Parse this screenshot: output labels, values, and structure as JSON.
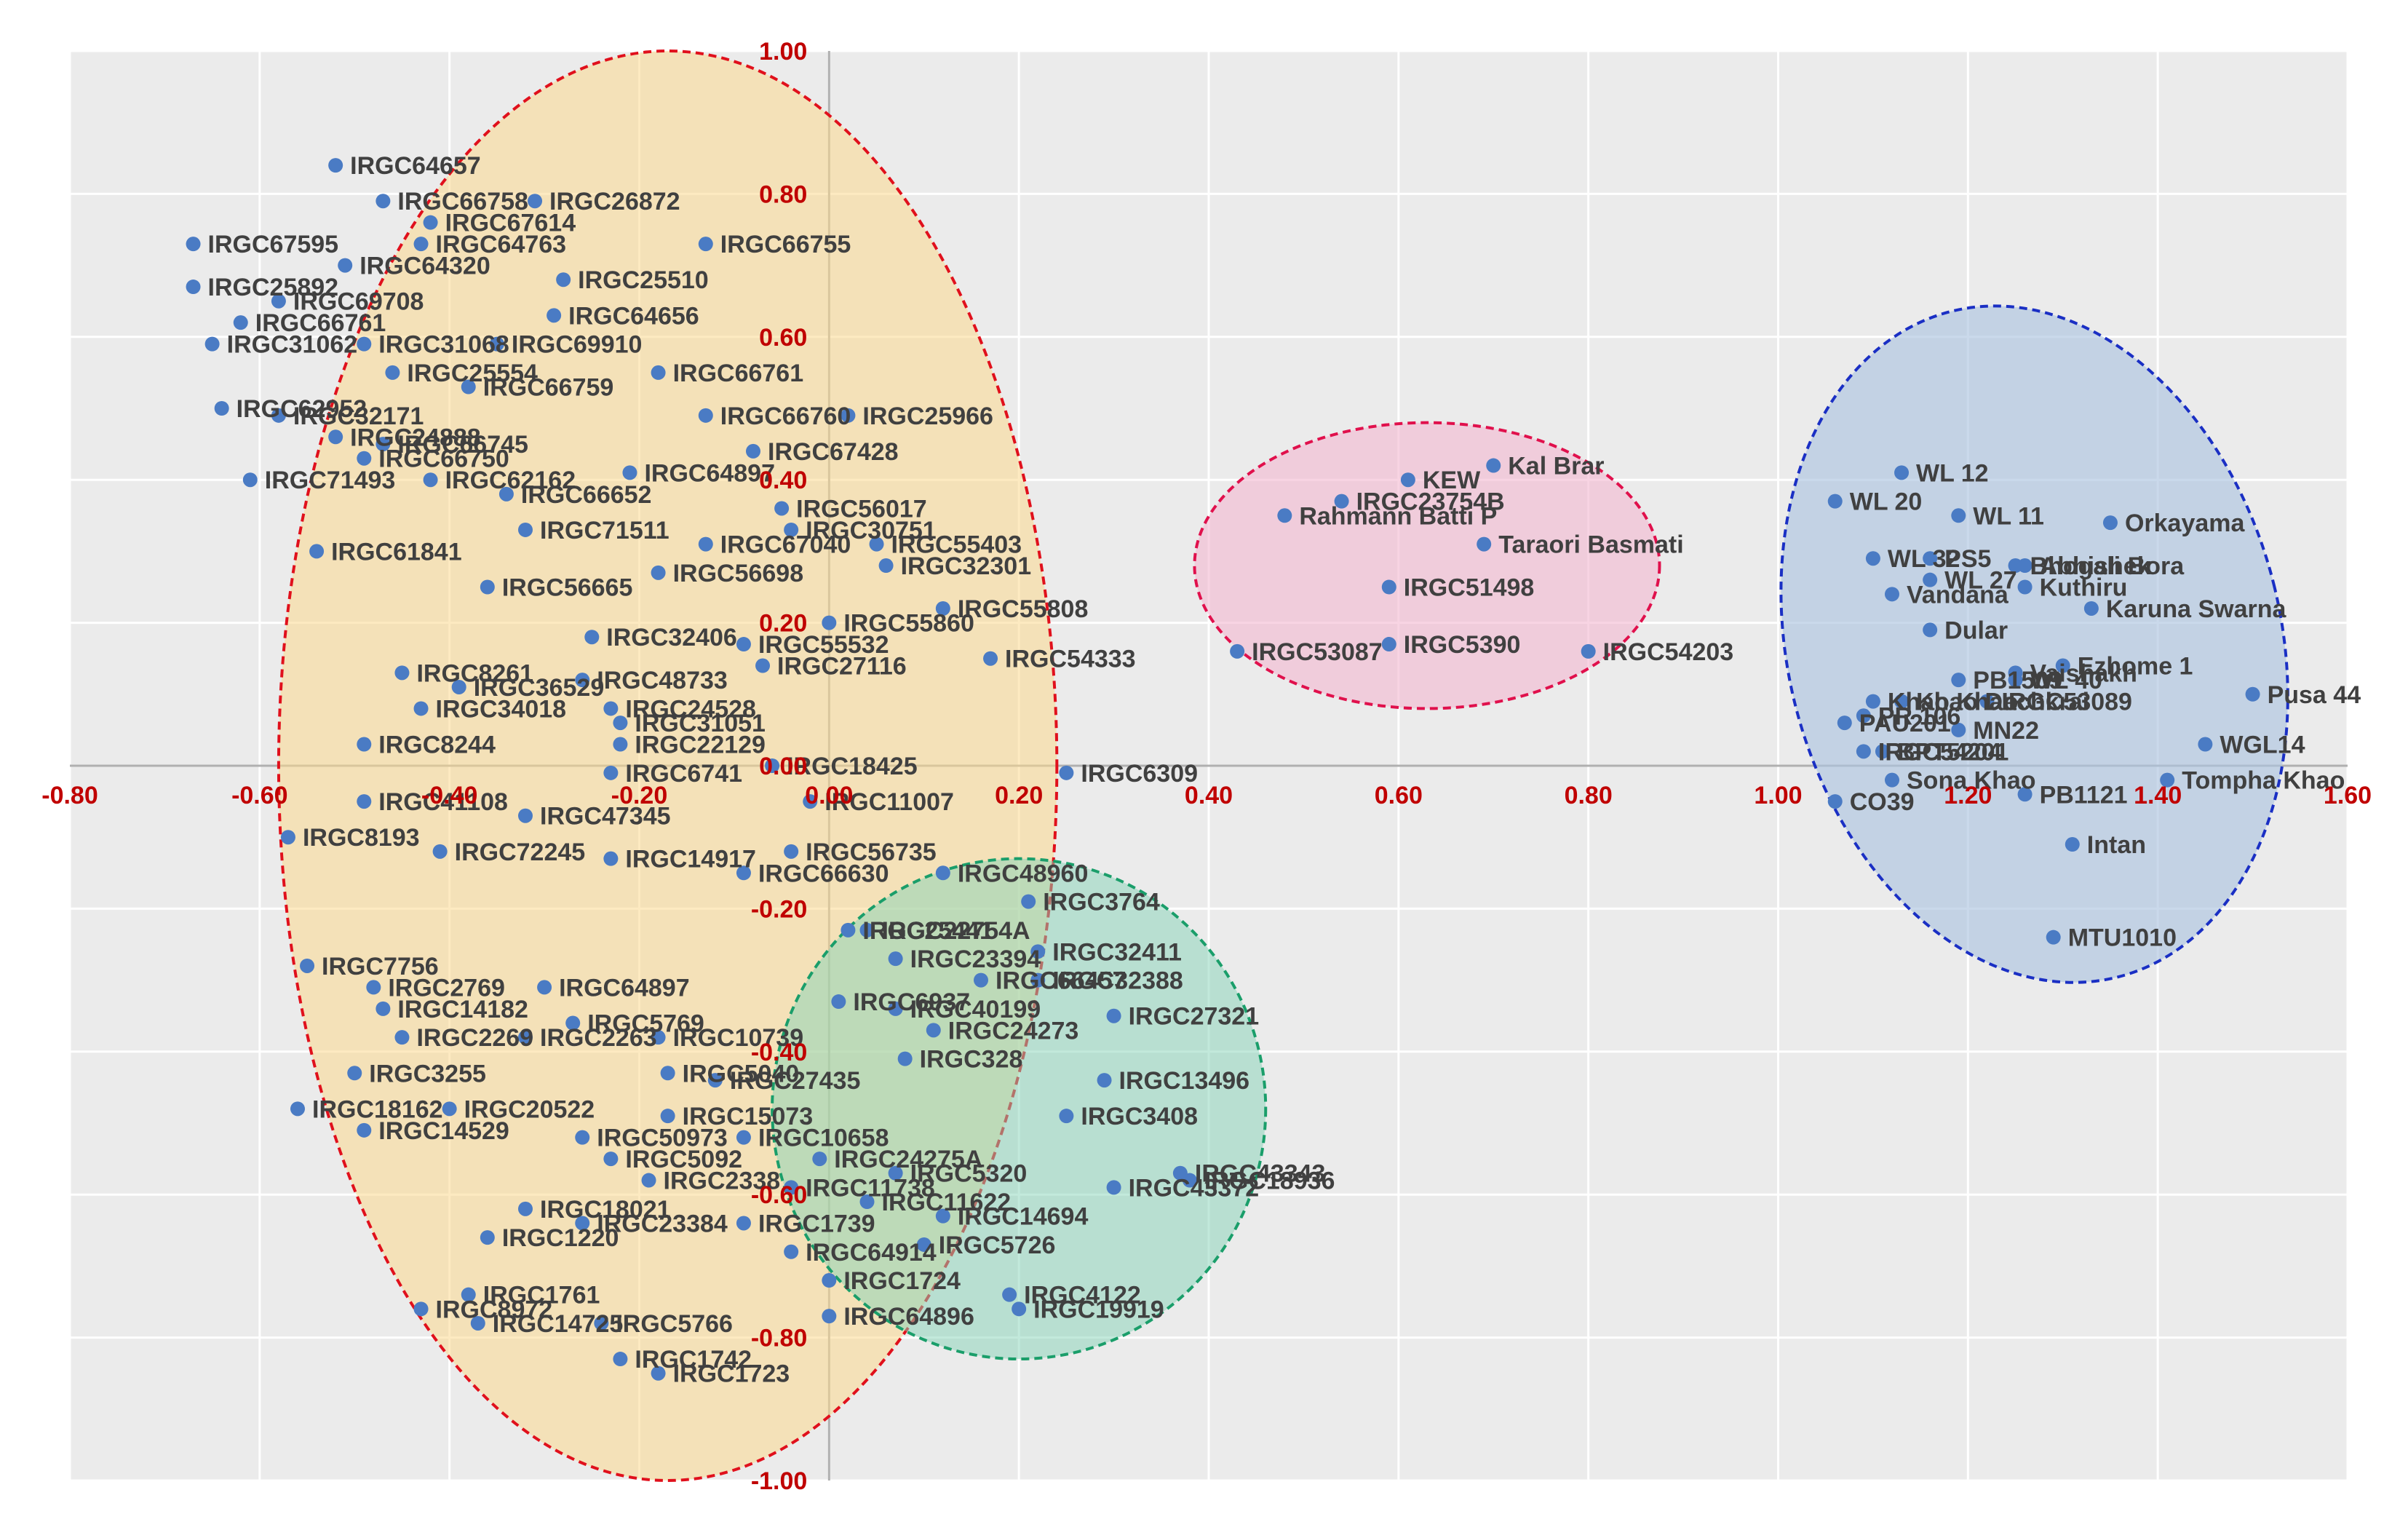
{
  "chart_data": {
    "type": "scatter",
    "title": "",
    "xlabel": "",
    "ylabel": "",
    "xlim": [
      -0.8,
      1.6
    ],
    "ylim": [
      -1.0,
      1.0
    ],
    "grid": true,
    "colors": {
      "background": "#ebebeb",
      "grid": "#ffffff",
      "axis": "#b0b0b0",
      "tick_label": "#c00000",
      "point": "#4a7bc4",
      "point_label": "#404040"
    },
    "x_ticks": [
      {
        "value": -0.8,
        "label": "-0.80"
      },
      {
        "value": -0.6,
        "label": "-0.60"
      },
      {
        "value": -0.4,
        "label": "-0.40"
      },
      {
        "value": -0.2,
        "label": "-0.20"
      },
      {
        "value": 0.0,
        "label": "0.00"
      },
      {
        "value": 0.2,
        "label": "0.20"
      },
      {
        "value": 0.4,
        "label": "0.40"
      },
      {
        "value": 0.6,
        "label": "0.60"
      },
      {
        "value": 0.8,
        "label": "0.80"
      },
      {
        "value": 1.0,
        "label": "1.00"
      },
      {
        "value": 1.2,
        "label": "1.20"
      },
      {
        "value": 1.4,
        "label": "1.40"
      },
      {
        "value": 1.6,
        "label": "1.60"
      }
    ],
    "y_ticks": [
      {
        "value": 1.0,
        "label": "1.00"
      },
      {
        "value": 0.8,
        "label": "0.80"
      },
      {
        "value": 0.6,
        "label": "0.60"
      },
      {
        "value": 0.4,
        "label": "0.40"
      },
      {
        "value": 0.2,
        "label": "0.20"
      },
      {
        "value": 0.0,
        "label": "0.00"
      },
      {
        "value": -0.2,
        "label": "-0.20"
      },
      {
        "value": -0.4,
        "label": "-0.40"
      },
      {
        "value": -0.6,
        "label": "-0.60"
      },
      {
        "value": -0.8,
        "label": "-0.80"
      },
      {
        "value": -1.0,
        "label": "-1.00"
      }
    ],
    "clusters": [
      {
        "name": "cluster-1",
        "color": "#e0101c",
        "fill": "#fbd98e",
        "fill_opacity": 0.55,
        "cx": -0.17,
        "cy": 0.0,
        "rx": 0.41,
        "ry": 1.0,
        "rotation_deg": 0
      },
      {
        "name": "cluster-2",
        "color": "#1a9e6a",
        "fill": "#86d4b8",
        "fill_opacity": 0.5,
        "cx": 0.2,
        "cy": -0.48,
        "rx": 0.26,
        "ry": 0.35,
        "rotation_deg": 0
      },
      {
        "name": "cluster-3",
        "color": "#e0104c",
        "fill": "#f4b8d0",
        "fill_opacity": 0.6,
        "cx": 0.63,
        "cy": 0.28,
        "rx": 0.245,
        "ry": 0.2,
        "rotation_deg": 0
      },
      {
        "name": "cluster-4",
        "color": "#1a2fc4",
        "fill": "#aec4e0",
        "fill_opacity": 0.65,
        "cx": 1.27,
        "cy": 0.17,
        "rx": 0.26,
        "ry": 0.48,
        "rotation_deg": -14
      }
    ],
    "points": [
      {
        "label": "IRGC64657",
        "x": -0.52,
        "y": 0.84
      },
      {
        "label": "IRGC66758",
        "x": -0.47,
        "y": 0.79
      },
      {
        "label": "IRGC26872",
        "x": -0.31,
        "y": 0.79
      },
      {
        "label": "IRGC67614",
        "x": -0.42,
        "y": 0.76
      },
      {
        "label": "IRGC67595",
        "x": -0.67,
        "y": 0.73
      },
      {
        "label": "IRGC64763",
        "x": -0.43,
        "y": 0.73
      },
      {
        "label": "IRGC66755",
        "x": -0.13,
        "y": 0.73
      },
      {
        "label": "IRGC64320",
        "x": -0.51,
        "y": 0.7
      },
      {
        "label": "IRGC25892",
        "x": -0.67,
        "y": 0.67
      },
      {
        "label": "IRGC25510",
        "x": -0.28,
        "y": 0.68
      },
      {
        "label": "IRGC69708",
        "x": -0.58,
        "y": 0.65
      },
      {
        "label": "IRGC64656",
        "x": -0.29,
        "y": 0.63
      },
      {
        "label": "IRGC66761",
        "x": -0.62,
        "y": 0.62
      },
      {
        "label": "IRGC31062",
        "x": -0.65,
        "y": 0.59
      },
      {
        "label": "IRGC31068",
        "x": -0.49,
        "y": 0.59
      },
      {
        "label": "IRGC69910",
        "x": -0.35,
        "y": 0.59
      },
      {
        "label": "IRGC25554",
        "x": -0.46,
        "y": 0.55
      },
      {
        "label": "IRGC66761",
        "x": -0.18,
        "y": 0.55
      },
      {
        "label": "IRGC62952",
        "x": -0.64,
        "y": 0.5
      },
      {
        "label": "IRGC66759",
        "x": -0.38,
        "y": 0.53
      },
      {
        "label": "IRGC32171",
        "x": -0.58,
        "y": 0.49
      },
      {
        "label": "IRGC66760",
        "x": -0.13,
        "y": 0.49
      },
      {
        "label": "IRGC25966",
        "x": 0.02,
        "y": 0.49
      },
      {
        "label": "IRGC24888",
        "x": -0.52,
        "y": 0.46
      },
      {
        "label": "IRGC67428",
        "x": -0.08,
        "y": 0.44
      },
      {
        "label": "IRGC66745",
        "x": -0.47,
        "y": 0.45
      },
      {
        "label": "IRGC66750",
        "x": -0.49,
        "y": 0.43
      },
      {
        "label": "IRGC71493",
        "x": -0.61,
        "y": 0.4
      },
      {
        "label": "IRGC62162",
        "x": -0.42,
        "y": 0.4
      },
      {
        "label": "IRGC64897",
        "x": -0.21,
        "y": 0.41
      },
      {
        "label": "IRGC66652",
        "x": -0.34,
        "y": 0.38
      },
      {
        "label": "IRGC56017",
        "x": -0.05,
        "y": 0.36
      },
      {
        "label": "IRGC71511",
        "x": -0.32,
        "y": 0.33
      },
      {
        "label": "IRGC30751",
        "x": -0.04,
        "y": 0.33
      },
      {
        "label": "IRGC67040",
        "x": -0.13,
        "y": 0.31
      },
      {
        "label": "IRGC55403",
        "x": 0.05,
        "y": 0.31
      },
      {
        "label": "IRGC61841",
        "x": -0.54,
        "y": 0.3
      },
      {
        "label": "IRGC32301",
        "x": 0.06,
        "y": 0.28
      },
      {
        "label": "IRGC56698",
        "x": -0.18,
        "y": 0.27
      },
      {
        "label": "IRGC56665",
        "x": -0.36,
        "y": 0.25
      },
      {
        "label": "IRGC55808",
        "x": 0.12,
        "y": 0.22
      },
      {
        "label": "IRGC55860",
        "x": 0.0,
        "y": 0.2
      },
      {
        "label": "IRGC32406",
        "x": -0.25,
        "y": 0.18
      },
      {
        "label": "IRGC55532",
        "x": -0.09,
        "y": 0.17
      },
      {
        "label": "IRGC54333",
        "x": 0.17,
        "y": 0.15
      },
      {
        "label": "IRGC27116",
        "x": -0.07,
        "y": 0.14
      },
      {
        "label": "IRGC8261",
        "x": -0.45,
        "y": 0.13
      },
      {
        "label": "IRGC48733",
        "x": -0.26,
        "y": 0.12
      },
      {
        "label": "IRGC36529",
        "x": -0.39,
        "y": 0.11
      },
      {
        "label": "IRGC34018",
        "x": -0.43,
        "y": 0.08
      },
      {
        "label": "IRGC24528",
        "x": -0.23,
        "y": 0.08
      },
      {
        "label": "IRGC31051",
        "x": -0.22,
        "y": 0.06
      },
      {
        "label": "IRGC22129",
        "x": -0.22,
        "y": 0.03
      },
      {
        "label": "IRGC8244",
        "x": -0.49,
        "y": 0.03
      },
      {
        "label": "IRGC18425",
        "x": -0.06,
        "y": 0.0
      },
      {
        "label": "IRGC6309",
        "x": 0.25,
        "y": -0.01
      },
      {
        "label": "IRGC6741",
        "x": -0.23,
        "y": -0.01
      },
      {
        "label": "IRGC41108",
        "x": -0.49,
        "y": -0.05
      },
      {
        "label": "IRGC47345",
        "x": -0.32,
        "y": -0.07
      },
      {
        "label": "IRGC11007",
        "x": -0.02,
        "y": -0.05
      },
      {
        "label": "IRGC8193",
        "x": -0.57,
        "y": -0.1
      },
      {
        "label": "IRGC56735",
        "x": -0.04,
        "y": -0.12
      },
      {
        "label": "IRGC14917",
        "x": -0.23,
        "y": -0.13
      },
      {
        "label": "IRGC72245",
        "x": -0.41,
        "y": -0.12
      },
      {
        "label": "IRGC48960",
        "x": 0.12,
        "y": -0.15
      },
      {
        "label": "IRGC66630",
        "x": -0.09,
        "y": -0.15
      },
      {
        "label": "IRGC3764",
        "x": 0.21,
        "y": -0.19
      },
      {
        "label": "IRGC25441",
        "x": 0.02,
        "y": -0.23
      },
      {
        "label": "IRGC22754A",
        "x": 0.04,
        "y": -0.23
      },
      {
        "label": "IRGC32411",
        "x": 0.22,
        "y": -0.26
      },
      {
        "label": "IRGC32388",
        "x": 0.22,
        "y": -0.3
      },
      {
        "label": "IRGC23394",
        "x": 0.07,
        "y": -0.27
      },
      {
        "label": "IRGC66457",
        "x": 0.16,
        "y": -0.3
      },
      {
        "label": "IRGC7756",
        "x": -0.55,
        "y": -0.28
      },
      {
        "label": "IRGC2769",
        "x": -0.48,
        "y": -0.31
      },
      {
        "label": "IRGC64897",
        "x": -0.3,
        "y": -0.31
      },
      {
        "label": "IRGC6937",
        "x": 0.01,
        "y": -0.33
      },
      {
        "label": "IRGC40199",
        "x": 0.07,
        "y": -0.34
      },
      {
        "label": "IRGC27321",
        "x": 0.3,
        "y": -0.35
      },
      {
        "label": "IRGC14182",
        "x": -0.47,
        "y": -0.34
      },
      {
        "label": "IRGC24273",
        "x": 0.11,
        "y": -0.37
      },
      {
        "label": "IRGC5769",
        "x": -0.27,
        "y": -0.36
      },
      {
        "label": "IRGC2269",
        "x": -0.45,
        "y": -0.38
      },
      {
        "label": "IRGC2263",
        "x": -0.32,
        "y": -0.38
      },
      {
        "label": "IRGC10739",
        "x": -0.18,
        "y": -0.38
      },
      {
        "label": "IRGC328",
        "x": 0.08,
        "y": -0.41
      },
      {
        "label": "IRGC3255",
        "x": -0.5,
        "y": -0.43
      },
      {
        "label": "IRGC5040",
        "x": -0.17,
        "y": -0.43
      },
      {
        "label": "IRGC27435",
        "x": -0.12,
        "y": -0.44
      },
      {
        "label": "IRGC13496",
        "x": 0.29,
        "y": -0.44
      },
      {
        "label": "IRGC18162",
        "x": -0.56,
        "y": -0.48
      },
      {
        "label": "IRGC20522",
        "x": -0.4,
        "y": -0.48
      },
      {
        "label": "IRGC15073",
        "x": -0.17,
        "y": -0.49
      },
      {
        "label": "IRGC3408",
        "x": 0.25,
        "y": -0.49
      },
      {
        "label": "IRGC14529",
        "x": -0.49,
        "y": -0.51
      },
      {
        "label": "IRGC50973",
        "x": -0.26,
        "y": -0.52
      },
      {
        "label": "IRGC10658",
        "x": -0.09,
        "y": -0.52
      },
      {
        "label": "IRGC5092",
        "x": -0.23,
        "y": -0.55
      },
      {
        "label": "IRGC24275A",
        "x": -0.01,
        "y": -0.55
      },
      {
        "label": "IRGC43343",
        "x": 0.37,
        "y": -0.57
      },
      {
        "label": "IRGC2338",
        "x": -0.19,
        "y": -0.58
      },
      {
        "label": "IRGC5320",
        "x": 0.07,
        "y": -0.57
      },
      {
        "label": "IRGC18936",
        "x": 0.38,
        "y": -0.58
      },
      {
        "label": "IRGC11738",
        "x": -0.04,
        "y": -0.59
      },
      {
        "label": "IRGC11622",
        "x": 0.04,
        "y": -0.61
      },
      {
        "label": "IRGC43372",
        "x": 0.3,
        "y": -0.59
      },
      {
        "label": "IRGC18021",
        "x": -0.32,
        "y": -0.62
      },
      {
        "label": "IRGC23384",
        "x": -0.26,
        "y": -0.64
      },
      {
        "label": "IRGC14694",
        "x": 0.12,
        "y": -0.63
      },
      {
        "label": "IRGC1220",
        "x": -0.36,
        "y": -0.66
      },
      {
        "label": "IRGC1739",
        "x": -0.09,
        "y": -0.64
      },
      {
        "label": "IRGC5726",
        "x": 0.1,
        "y": -0.67
      },
      {
        "label": "IRGC64914",
        "x": -0.04,
        "y": -0.68
      },
      {
        "label": "IRGC1724",
        "x": 0.0,
        "y": -0.72
      },
      {
        "label": "IRGC4122",
        "x": 0.19,
        "y": -0.74
      },
      {
        "label": "IRGC1761",
        "x": -0.38,
        "y": -0.74
      },
      {
        "label": "IRGC19919",
        "x": 0.2,
        "y": -0.76
      },
      {
        "label": "IRGC64896",
        "x": 0.0,
        "y": -0.77
      },
      {
        "label": "IRGC8972",
        "x": -0.43,
        "y": -0.76
      },
      {
        "label": "IRGC14725",
        "x": -0.37,
        "y": -0.78
      },
      {
        "label": "IRGC5766",
        "x": -0.24,
        "y": -0.78
      },
      {
        "label": "IRGC1742",
        "x": -0.22,
        "y": -0.83
      },
      {
        "label": "IRGC1723",
        "x": -0.18,
        "y": -0.85
      },
      {
        "label": "KEW",
        "x": 0.61,
        "y": 0.4
      },
      {
        "label": "Kal Brar",
        "x": 0.7,
        "y": 0.42
      },
      {
        "label": "IRGC23754B",
        "x": 0.54,
        "y": 0.37
      },
      {
        "label": "Rahmann Batti P",
        "x": 0.48,
        "y": 0.35
      },
      {
        "label": "Taraori Basmati",
        "x": 0.69,
        "y": 0.31
      },
      {
        "label": "IRGC51498",
        "x": 0.59,
        "y": 0.25
      },
      {
        "label": "IRGC53087",
        "x": 0.43,
        "y": 0.16
      },
      {
        "label": "IRGC5390",
        "x": 0.59,
        "y": 0.17
      },
      {
        "label": "IRGC54203",
        "x": 0.8,
        "y": 0.16
      },
      {
        "label": "WL 12",
        "x": 1.13,
        "y": 0.41
      },
      {
        "label": "WL 20",
        "x": 1.06,
        "y": 0.37
      },
      {
        "label": "WL 11",
        "x": 1.19,
        "y": 0.35
      },
      {
        "label": "Orkayama",
        "x": 1.35,
        "y": 0.34
      },
      {
        "label": "Abhishek",
        "x": 1.26,
        "y": 0.28
      },
      {
        "label": "PS5",
        "x": 1.16,
        "y": 0.29
      },
      {
        "label": "WL 32",
        "x": 1.1,
        "y": 0.29
      },
      {
        "label": "Bhogali Bora",
        "x": 1.25,
        "y": 0.28
      },
      {
        "label": "WL 27",
        "x": 1.16,
        "y": 0.26
      },
      {
        "label": "Vandana",
        "x": 1.12,
        "y": 0.24
      },
      {
        "label": "Kuthiru",
        "x": 1.26,
        "y": 0.25
      },
      {
        "label": "Karuna Swarna",
        "x": 1.33,
        "y": 0.22
      },
      {
        "label": "Dular",
        "x": 1.16,
        "y": 0.19
      },
      {
        "label": "Vaishakh",
        "x": 1.25,
        "y": 0.13
      },
      {
        "label": "Ezhome 1",
        "x": 1.3,
        "y": 0.14
      },
      {
        "label": "Khao Dachkrai",
        "x": 1.13,
        "y": 0.09
      },
      {
        "label": "PB1509",
        "x": 1.19,
        "y": 0.12
      },
      {
        "label": "WL 40",
        "x": 1.25,
        "y": 0.12
      },
      {
        "label": "Khao Khao",
        "x": 1.1,
        "y": 0.09
      },
      {
        "label": "IRGC53089",
        "x": 1.22,
        "y": 0.09
      },
      {
        "label": "Pusa 44",
        "x": 1.5,
        "y": 0.1
      },
      {
        "label": "PAU201",
        "x": 1.07,
        "y": 0.06
      },
      {
        "label": "PR 106",
        "x": 1.09,
        "y": 0.07
      },
      {
        "label": "MN22",
        "x": 1.19,
        "y": 0.05
      },
      {
        "label": "WGL14",
        "x": 1.45,
        "y": 0.03
      },
      {
        "label": "IRGC54201",
        "x": 1.09,
        "y": 0.02
      },
      {
        "label": "BPT5204",
        "x": 1.11,
        "y": 0.02
      },
      {
        "label": "Sona Khao",
        "x": 1.12,
        "y": -0.02
      },
      {
        "label": "Tompha Khao",
        "x": 1.41,
        "y": -0.02
      },
      {
        "label": "PB1121",
        "x": 1.26,
        "y": -0.04
      },
      {
        "label": "CO39",
        "x": 1.06,
        "y": -0.05
      },
      {
        "label": "Intan",
        "x": 1.31,
        "y": -0.11
      },
      {
        "label": "MTU1010",
        "x": 1.29,
        "y": -0.24
      }
    ]
  }
}
